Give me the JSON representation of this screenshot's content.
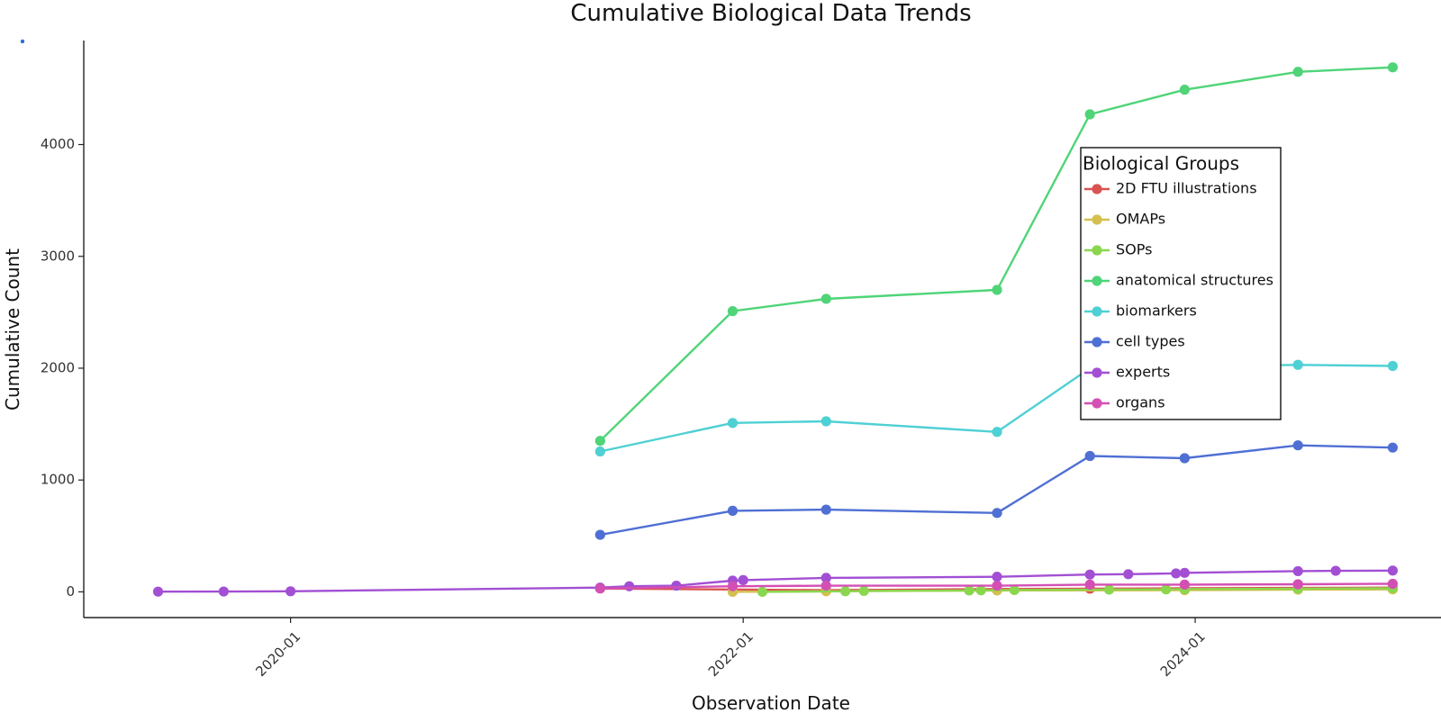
{
  "chart_data": {
    "type": "line",
    "title": "Cumulative Biological Data Trends",
    "xlabel": "Observation Date",
    "ylabel": "Cumulative Count",
    "x_axis_type": "date",
    "xlim": [
      "2019-02-01",
      "2025-02-01"
    ],
    "ylim": [
      -230,
      4930
    ],
    "x_ticks": [
      "2020-01-01",
      "2022-01-01",
      "2024-01-01"
    ],
    "x_tick_labels": [
      "2020-01",
      "2022-01",
      "2024-01"
    ],
    "y_ticks": [
      0,
      1000,
      2000,
      3000,
      4000
    ],
    "grid": false,
    "legend": {
      "title": "Biological Groups",
      "placement": "upper-right-inside"
    },
    "series": [
      {
        "name": "2D FTU illustrations",
        "color": "#d95350",
        "points": [
          {
            "x": "2021-05-15",
            "y": 30
          },
          {
            "x": "2022-05-15",
            "y": 15
          },
          {
            "x": "2023-02-15",
            "y": 25
          },
          {
            "x": "2023-07-15",
            "y": 28
          },
          {
            "x": "2023-12-15",
            "y": 32
          },
          {
            "x": "2024-06-15",
            "y": 35
          },
          {
            "x": "2024-11-15",
            "y": 38
          }
        ]
      },
      {
        "name": "OMAPs",
        "color": "#d4c04f",
        "points": [
          {
            "x": "2021-12-15",
            "y": 0
          },
          {
            "x": "2022-05-15",
            "y": 5
          },
          {
            "x": "2023-02-15",
            "y": 12
          },
          {
            "x": "2023-12-15",
            "y": 15
          },
          {
            "x": "2024-06-15",
            "y": 20
          },
          {
            "x": "2024-11-15",
            "y": 22
          }
        ]
      },
      {
        "name": "SOPs",
        "color": "#8ad74f",
        "points": [
          {
            "x": "2022-02-01",
            "y": 0
          },
          {
            "x": "2022-06-15",
            "y": 5
          },
          {
            "x": "2022-07-15",
            "y": 8
          },
          {
            "x": "2023-01-01",
            "y": 12
          },
          {
            "x": "2023-01-20",
            "y": 14
          },
          {
            "x": "2023-03-15",
            "y": 16
          },
          {
            "x": "2023-08-15",
            "y": 20
          },
          {
            "x": "2023-11-15",
            "y": 22
          },
          {
            "x": "2023-12-15",
            "y": 24
          },
          {
            "x": "2024-06-15",
            "y": 28
          },
          {
            "x": "2024-11-15",
            "y": 32
          }
        ]
      },
      {
        "name": "anatomical structures",
        "color": "#4fd478",
        "points": [
          {
            "x": "2021-05-15",
            "y": 1350
          },
          {
            "x": "2021-12-15",
            "y": 2510
          },
          {
            "x": "2022-05-15",
            "y": 2620
          },
          {
            "x": "2023-02-15",
            "y": 2700
          },
          {
            "x": "2023-07-15",
            "y": 4270
          },
          {
            "x": "2023-12-15",
            "y": 4490
          },
          {
            "x": "2024-06-15",
            "y": 4650
          },
          {
            "x": "2024-11-15",
            "y": 4690
          }
        ]
      },
      {
        "name": "biomarkers",
        "color": "#4fd0d4",
        "points": [
          {
            "x": "2021-05-15",
            "y": 1255
          },
          {
            "x": "2021-12-15",
            "y": 1510
          },
          {
            "x": "2022-05-15",
            "y": 1525
          },
          {
            "x": "2023-02-15",
            "y": 1430
          },
          {
            "x": "2023-07-15",
            "y": 2000
          },
          {
            "x": "2023-12-15",
            "y": 2015
          },
          {
            "x": "2024-06-15",
            "y": 2030
          },
          {
            "x": "2024-11-15",
            "y": 2020
          }
        ]
      },
      {
        "name": "cell types",
        "color": "#4f6fd4",
        "points": [
          {
            "x": "2021-05-15",
            "y": 510
          },
          {
            "x": "2021-12-15",
            "y": 725
          },
          {
            "x": "2022-05-15",
            "y": 735
          },
          {
            "x": "2023-02-15",
            "y": 705
          },
          {
            "x": "2023-07-15",
            "y": 1215
          },
          {
            "x": "2023-12-15",
            "y": 1195
          },
          {
            "x": "2024-06-15",
            "y": 1310
          },
          {
            "x": "2024-11-15",
            "y": 1290
          }
        ]
      },
      {
        "name": "experts",
        "color": "#a24fd4",
        "points": [
          {
            "x": "2019-06-01",
            "y": 2
          },
          {
            "x": "2019-09-15",
            "y": 3
          },
          {
            "x": "2020-01-01",
            "y": 5
          },
          {
            "x": "2021-05-15",
            "y": 38
          },
          {
            "x": "2021-07-01",
            "y": 50
          },
          {
            "x": "2021-09-15",
            "y": 55
          },
          {
            "x": "2021-12-15",
            "y": 100
          },
          {
            "x": "2022-01-01",
            "y": 105
          },
          {
            "x": "2022-05-15",
            "y": 125
          },
          {
            "x": "2023-02-15",
            "y": 135
          },
          {
            "x": "2023-07-15",
            "y": 155
          },
          {
            "x": "2023-09-15",
            "y": 158
          },
          {
            "x": "2023-12-01",
            "y": 165
          },
          {
            "x": "2023-12-15",
            "y": 170
          },
          {
            "x": "2024-06-15",
            "y": 185
          },
          {
            "x": "2024-08-15",
            "y": 188
          },
          {
            "x": "2024-11-15",
            "y": 190
          }
        ]
      },
      {
        "name": "organs",
        "color": "#d44fb4",
        "points": [
          {
            "x": "2021-05-15",
            "y": 30
          },
          {
            "x": "2021-12-15",
            "y": 50
          },
          {
            "x": "2022-05-15",
            "y": 55
          },
          {
            "x": "2023-02-15",
            "y": 55
          },
          {
            "x": "2023-07-15",
            "y": 65
          },
          {
            "x": "2023-12-15",
            "y": 65
          },
          {
            "x": "2024-06-15",
            "y": 68
          },
          {
            "x": "2024-11-15",
            "y": 72
          }
        ]
      }
    ]
  }
}
